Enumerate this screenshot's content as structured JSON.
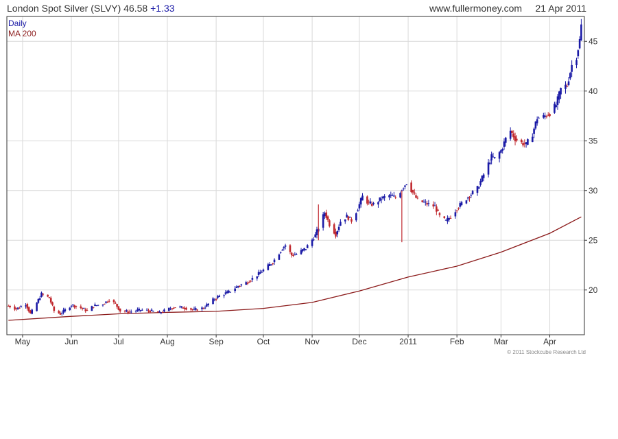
{
  "header": {
    "title": "London Spot Silver (SLVY)",
    "price": "46.58",
    "change": "+1.33",
    "site": "www.fullermoney.com",
    "date": "21 Apr 2011"
  },
  "copyright": "© 2011 Stockcube Research Ltd",
  "colors": {
    "up": "#1a1aa6",
    "down": "#c0282e",
    "ma": "#8b1a1a",
    "grid": "#d9d9d9",
    "frame": "#333333"
  },
  "chart_data": {
    "type": "candlestick",
    "title": "London Spot Silver (SLVY)",
    "legend": [
      {
        "name": "Daily",
        "color": "#1a1aa6"
      },
      {
        "name": "MA 200",
        "color": "#8b1a1a"
      }
    ],
    "legend_position": "top-left",
    "grid": true,
    "y_axis_side": "right",
    "ylim": [
      15.5,
      47.5
    ],
    "yticks": [
      20,
      25,
      30,
      35,
      40,
      45
    ],
    "xlim": [
      "2010-04-21",
      "2011-04-23"
    ],
    "xticks": [
      {
        "date": "2010-05-01",
        "label": "May"
      },
      {
        "date": "2010-06-01",
        "label": "Jun"
      },
      {
        "date": "2010-07-01",
        "label": "Jul"
      },
      {
        "date": "2010-08-01",
        "label": "Aug"
      },
      {
        "date": "2010-09-01",
        "label": "Sep"
      },
      {
        "date": "2010-10-01",
        "label": "Oct"
      },
      {
        "date": "2010-11-01",
        "label": "Nov"
      },
      {
        "date": "2010-12-01",
        "label": "Dec"
      },
      {
        "date": "2011-01-01",
        "label": "2011"
      },
      {
        "date": "2011-02-01",
        "label": "Feb"
      },
      {
        "date": "2011-03-01",
        "label": "Mar"
      },
      {
        "date": "2011-04-01",
        "label": "Apr"
      }
    ],
    "series": [
      {
        "name": "Daily",
        "close_points": [
          [
            "2010-04-22",
            18.4
          ],
          [
            "2010-04-27",
            18.1
          ],
          [
            "2010-05-03",
            18.6
          ],
          [
            "2010-05-06",
            17.6
          ],
          [
            "2010-05-10",
            18.7
          ],
          [
            "2010-05-13",
            19.6
          ],
          [
            "2010-05-18",
            19.2
          ],
          [
            "2010-05-21",
            17.9
          ],
          [
            "2010-05-25",
            17.6
          ],
          [
            "2010-06-01",
            18.5
          ],
          [
            "2010-06-07",
            18.2
          ],
          [
            "2010-06-11",
            17.9
          ],
          [
            "2010-06-15",
            18.4
          ],
          [
            "2010-06-21",
            18.6
          ],
          [
            "2010-06-25",
            19.0
          ],
          [
            "2010-06-29",
            18.6
          ],
          [
            "2010-07-02",
            17.9
          ],
          [
            "2010-07-08",
            17.8
          ],
          [
            "2010-07-15",
            18.0
          ],
          [
            "2010-07-21",
            17.9
          ],
          [
            "2010-07-27",
            17.7
          ],
          [
            "2010-08-02",
            18.1
          ],
          [
            "2010-08-06",
            18.3
          ],
          [
            "2010-08-12",
            18.2
          ],
          [
            "2010-08-18",
            18.0
          ],
          [
            "2010-08-24",
            18.2
          ],
          [
            "2010-08-30",
            19.0
          ],
          [
            "2010-09-03",
            19.4
          ],
          [
            "2010-09-09",
            19.8
          ],
          [
            "2010-09-15",
            20.4
          ],
          [
            "2010-09-21",
            20.8
          ],
          [
            "2010-09-27",
            21.5
          ],
          [
            "2010-10-01",
            22.0
          ],
          [
            "2010-10-07",
            22.8
          ],
          [
            "2010-10-13",
            24.2
          ],
          [
            "2010-10-15",
            24.5
          ],
          [
            "2010-10-19",
            23.5
          ],
          [
            "2010-10-22",
            23.6
          ],
          [
            "2010-10-28",
            24.2
          ],
          [
            "2010-11-03",
            25.5
          ],
          [
            "2010-11-09",
            27.8
          ],
          [
            "2010-11-12",
            26.6
          ],
          [
            "2010-11-16",
            25.6
          ],
          [
            "2010-11-19",
            26.9
          ],
          [
            "2010-11-23",
            27.4
          ],
          [
            "2010-11-26",
            27.0
          ],
          [
            "2010-11-30",
            28.2
          ],
          [
            "2010-12-03",
            29.4
          ],
          [
            "2010-12-07",
            28.7
          ],
          [
            "2010-12-10",
            28.6
          ],
          [
            "2010-12-15",
            29.2
          ],
          [
            "2010-12-20",
            29.5
          ],
          [
            "2010-12-24",
            29.3
          ],
          [
            "2010-12-31",
            30.8
          ],
          [
            "2011-01-04",
            29.8
          ],
          [
            "2011-01-07",
            29.0
          ],
          [
            "2011-01-11",
            28.8
          ],
          [
            "2011-01-14",
            28.6
          ],
          [
            "2011-01-18",
            28.4
          ],
          [
            "2011-01-21",
            27.4
          ],
          [
            "2011-01-25",
            26.9
          ],
          [
            "2011-01-28",
            27.4
          ],
          [
            "2011-02-01",
            28.2
          ],
          [
            "2011-02-07",
            29.2
          ],
          [
            "2011-02-14",
            30.2
          ],
          [
            "2011-02-18",
            31.6
          ],
          [
            "2011-02-23",
            33.4
          ],
          [
            "2011-02-25",
            33.2
          ],
          [
            "2011-03-01",
            34.0
          ],
          [
            "2011-03-04",
            35.2
          ],
          [
            "2011-03-07",
            36.0
          ],
          [
            "2011-03-10",
            35.2
          ],
          [
            "2011-03-14",
            34.8
          ],
          [
            "2011-03-17",
            34.6
          ],
          [
            "2011-03-21",
            35.7
          ],
          [
            "2011-03-24",
            37.3
          ],
          [
            "2011-03-28",
            37.4
          ],
          [
            "2011-04-01",
            37.8
          ],
          [
            "2011-04-05",
            38.6
          ],
          [
            "2011-04-08",
            40.2
          ],
          [
            "2011-04-12",
            40.6
          ],
          [
            "2011-04-15",
            42.6
          ],
          [
            "2011-04-18",
            43.5
          ],
          [
            "2011-04-20",
            45.1
          ],
          [
            "2011-04-21",
            46.58
          ]
        ],
        "spikes": [
          {
            "date": "2010-12-28",
            "high": 30.0,
            "low": 24.8,
            "color": "down"
          },
          {
            "date": "2010-11-05",
            "high": 28.6,
            "low": 25.0,
            "color": "down"
          }
        ]
      },
      {
        "name": "MA 200",
        "points": [
          [
            "2010-04-22",
            16.95
          ],
          [
            "2010-06-01",
            17.35
          ],
          [
            "2010-07-01",
            17.6
          ],
          [
            "2010-08-01",
            17.75
          ],
          [
            "2010-09-01",
            17.85
          ],
          [
            "2010-10-01",
            18.15
          ],
          [
            "2010-11-01",
            18.75
          ],
          [
            "2010-12-01",
            19.9
          ],
          [
            "2011-01-01",
            21.3
          ],
          [
            "2011-02-01",
            22.4
          ],
          [
            "2011-03-01",
            23.8
          ],
          [
            "2011-04-01",
            25.7
          ],
          [
            "2011-04-21",
            27.35
          ]
        ]
      }
    ]
  }
}
